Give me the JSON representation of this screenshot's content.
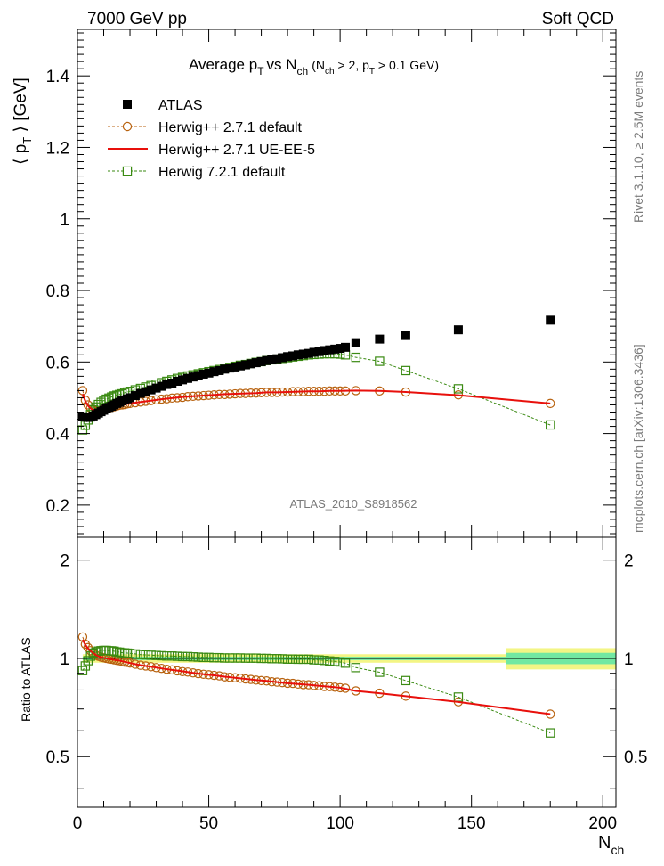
{
  "header": {
    "left": "7000 GeV pp",
    "right": "Soft QCD"
  },
  "side": {
    "top": "Rivet 3.1.10, ≥ 2.5M events",
    "bottom": "mcplots.cern.ch [arXiv:1306.3436]"
  },
  "colors": {
    "atlas": "#000000",
    "herwigpp_default": "#b8620f",
    "herwigpp_ue": "#e8100c",
    "herwig7": "#3a8a12",
    "band_outer": "#f3f585",
    "band_inner": "#72e8a2"
  },
  "chart_data": [
    {
      "type": "scatter",
      "title": "Average p_T vs N_ch (N_ch > 2, p_T > 0.1 GeV)",
      "title_main": "Average p",
      "title_sub_t": "T",
      "title_vs": "vs N",
      "title_sub_ch": "ch",
      "title_cut_open": "(N",
      "title_cut_mid": " > 2, p",
      "title_cut_close": " > 0.1 GeV)",
      "ylabel": "⟨ p_T ⟩ [GeV]",
      "ylabel_open": "⟨ p",
      "ylabel_close": " ⟩ [GeV]",
      "xlabel": "N_ch",
      "watermark": "ATLAS_2010_S8918562",
      "xlim": [
        0,
        205
      ],
      "ylim": [
        0.11,
        1.53
      ],
      "y_ticks": [
        0.2,
        0.4,
        0.6,
        0.8,
        1,
        1.2,
        1.4
      ],
      "y_tick_labels": [
        "0.2",
        "0.4",
        "0.6",
        "0.8",
        "1",
        "1.2",
        "1.4"
      ],
      "legend": [
        "ATLAS",
        "Herwig++ 2.7.1 default",
        "Herwig++ 2.7.1 UE-EE-5",
        "Herwig 7.2.1 default"
      ],
      "legend_position": "top-left",
      "series": [
        {
          "name": "ATLAS",
          "marker": "filled-square",
          "x": [
            2,
            3,
            4,
            5,
            6,
            7,
            8,
            9,
            10,
            11,
            12,
            13,
            14,
            15,
            16,
            17,
            18,
            19,
            20,
            22,
            24,
            26,
            28,
            30,
            32,
            34,
            36,
            38,
            40,
            42,
            44,
            46,
            48,
            50,
            52,
            54,
            56,
            58,
            60,
            62,
            64,
            66,
            68,
            70,
            72,
            74,
            76,
            78,
            80,
            82,
            84,
            86,
            88,
            90,
            92,
            94,
            96,
            98,
            100,
            102,
            106,
            115,
            125,
            145,
            180
          ],
          "y": [
            0.447,
            0.446,
            0.445,
            0.446,
            0.449,
            0.453,
            0.457,
            0.461,
            0.465,
            0.469,
            0.473,
            0.476,
            0.48,
            0.484,
            0.487,
            0.491,
            0.494,
            0.497,
            0.5,
            0.506,
            0.512,
            0.517,
            0.522,
            0.527,
            0.532,
            0.537,
            0.541,
            0.546,
            0.55,
            0.554,
            0.558,
            0.562,
            0.566,
            0.569,
            0.573,
            0.576,
            0.58,
            0.583,
            0.586,
            0.589,
            0.592,
            0.595,
            0.598,
            0.601,
            0.604,
            0.607,
            0.609,
            0.612,
            0.615,
            0.617,
            0.62,
            0.622,
            0.624,
            0.627,
            0.629,
            0.632,
            0.634,
            0.636,
            0.638,
            0.641,
            0.654,
            0.664,
            0.674,
            0.69,
            0.717
          ]
        },
        {
          "name": "Herwig++ 2.7.1 default",
          "marker": "open-circle",
          "line": "dashed",
          "x": [
            2,
            3,
            4,
            5,
            6,
            7,
            8,
            9,
            10,
            11,
            12,
            13,
            14,
            15,
            16,
            17,
            18,
            19,
            20,
            22,
            24,
            26,
            28,
            30,
            32,
            34,
            36,
            38,
            40,
            42,
            44,
            46,
            48,
            50,
            52,
            54,
            56,
            58,
            60,
            62,
            64,
            66,
            68,
            70,
            72,
            74,
            76,
            78,
            80,
            82,
            84,
            86,
            88,
            90,
            92,
            94,
            96,
            98,
            100,
            102,
            106,
            115,
            125,
            145,
            180
          ],
          "y": [
            0.52,
            0.493,
            0.48,
            0.471,
            0.466,
            0.464,
            0.464,
            0.465,
            0.467,
            0.469,
            0.471,
            0.473,
            0.475,
            0.477,
            0.479,
            0.48,
            0.481,
            0.483,
            0.484,
            0.486,
            0.488,
            0.49,
            0.492,
            0.494,
            0.496,
            0.497,
            0.499,
            0.5,
            0.501,
            0.503,
            0.504,
            0.505,
            0.506,
            0.507,
            0.508,
            0.509,
            0.509,
            0.51,
            0.511,
            0.512,
            0.512,
            0.513,
            0.513,
            0.514,
            0.515,
            0.515,
            0.515,
            0.516,
            0.516,
            0.517,
            0.517,
            0.517,
            0.518,
            0.518,
            0.518,
            0.518,
            0.519,
            0.519,
            0.519,
            0.519,
            0.52,
            0.519,
            0.516,
            0.508,
            0.484
          ]
        },
        {
          "name": "Herwig++ 2.7.1 UE-EE-5",
          "marker": "none",
          "line": "solid",
          "x": [
            2,
            3,
            4,
            5,
            6,
            7,
            8,
            9,
            10,
            12,
            14,
            16,
            18,
            20,
            24,
            28,
            32,
            36,
            40,
            44,
            48,
            52,
            56,
            60,
            64,
            68,
            72,
            76,
            80,
            84,
            88,
            92,
            96,
            100,
            106,
            115,
            125,
            145,
            180
          ],
          "y": [
            0.51,
            0.49,
            0.478,
            0.47,
            0.466,
            0.464,
            0.464,
            0.465,
            0.467,
            0.471,
            0.475,
            0.479,
            0.482,
            0.484,
            0.488,
            0.492,
            0.496,
            0.499,
            0.502,
            0.504,
            0.506,
            0.508,
            0.51,
            0.511,
            0.512,
            0.513,
            0.515,
            0.515,
            0.516,
            0.517,
            0.518,
            0.518,
            0.519,
            0.519,
            0.52,
            0.519,
            0.516,
            0.507,
            0.484
          ]
        },
        {
          "name": "Herwig 7.2.1 default",
          "marker": "open-square",
          "line": "dashed",
          "x": [
            2,
            3,
            4,
            5,
            6,
            7,
            8,
            9,
            10,
            11,
            12,
            13,
            14,
            15,
            16,
            17,
            18,
            19,
            20,
            22,
            24,
            26,
            28,
            30,
            32,
            34,
            36,
            38,
            40,
            42,
            44,
            46,
            48,
            50,
            52,
            54,
            56,
            58,
            60,
            62,
            64,
            66,
            68,
            70,
            72,
            74,
            76,
            78,
            80,
            82,
            84,
            86,
            88,
            90,
            92,
            94,
            96,
            98,
            100,
            102,
            106,
            115,
            125,
            145,
            180
          ],
          "y": [
            0.41,
            0.423,
            0.438,
            0.453,
            0.466,
            0.474,
            0.481,
            0.487,
            0.492,
            0.496,
            0.499,
            0.502,
            0.505,
            0.507,
            0.509,
            0.511,
            0.514,
            0.516,
            0.518,
            0.522,
            0.526,
            0.53,
            0.534,
            0.538,
            0.542,
            0.546,
            0.55,
            0.554,
            0.557,
            0.561,
            0.564,
            0.567,
            0.57,
            0.573,
            0.576,
            0.579,
            0.582,
            0.585,
            0.588,
            0.591,
            0.593,
            0.596,
            0.599,
            0.601,
            0.604,
            0.606,
            0.608,
            0.61,
            0.612,
            0.614,
            0.616,
            0.618,
            0.62,
            0.621,
            0.622,
            0.623,
            0.623,
            0.623,
            0.622,
            0.62,
            0.613,
            0.602,
            0.576,
            0.525,
            0.424
          ]
        }
      ]
    },
    {
      "type": "line",
      "ylabel": "Ratio to ATLAS",
      "xlabel": "N_ch",
      "xlabel_main": "N",
      "xlabel_sub": "ch",
      "xlim": [
        0,
        205
      ],
      "ylim": [
        0.35,
        2.35
      ],
      "x_ticks": [
        0,
        50,
        100,
        150,
        200
      ],
      "x_tick_labels": [
        "0",
        "50",
        "100",
        "150",
        "200"
      ],
      "y_ticks": [
        0.5,
        1,
        2
      ],
      "y_tick_labels": [
        "0.5",
        "1",
        "2"
      ],
      "uncertainty_band": {
        "x_from": 2,
        "x_to": 205,
        "inner": 0.012,
        "outer": 0.03,
        "last_bin_from": 163,
        "last_inner": 0.04,
        "last_outer": 0.075
      },
      "series": [
        {
          "name": "Herwig++ 2.7.1 default",
          "marker": "open-circle",
          "line": "dashed",
          "x": [
            2,
            3,
            4,
            5,
            6,
            7,
            8,
            9,
            10,
            11,
            12,
            13,
            14,
            15,
            16,
            17,
            18,
            19,
            20,
            22,
            24,
            26,
            28,
            30,
            32,
            34,
            36,
            38,
            40,
            42,
            44,
            46,
            48,
            50,
            52,
            54,
            56,
            58,
            60,
            62,
            64,
            66,
            68,
            70,
            72,
            74,
            76,
            78,
            80,
            82,
            84,
            86,
            88,
            90,
            92,
            94,
            96,
            98,
            100,
            102,
            106,
            115,
            125,
            145,
            180
          ],
          "y": [
            1.163,
            1.105,
            1.079,
            1.056,
            1.038,
            1.024,
            1.015,
            1.009,
            1.004,
            1.0,
            0.996,
            0.994,
            0.99,
            0.986,
            0.984,
            0.978,
            0.974,
            0.972,
            0.968,
            0.96,
            0.953,
            0.948,
            0.943,
            0.937,
            0.932,
            0.926,
            0.922,
            0.916,
            0.911,
            0.908,
            0.903,
            0.898,
            0.894,
            0.891,
            0.887,
            0.884,
            0.878,
            0.875,
            0.872,
            0.869,
            0.865,
            0.862,
            0.858,
            0.855,
            0.853,
            0.848,
            0.846,
            0.843,
            0.839,
            0.838,
            0.834,
            0.831,
            0.83,
            0.826,
            0.824,
            0.82,
            0.819,
            0.816,
            0.813,
            0.81,
            0.795,
            0.782,
            0.766,
            0.736,
            0.675
          ]
        },
        {
          "name": "Herwig++ 2.7.1 UE-EE-5",
          "marker": "none",
          "line": "solid",
          "x": [
            2,
            3,
            4,
            5,
            6,
            7,
            8,
            9,
            10,
            12,
            14,
            16,
            18,
            20,
            24,
            28,
            32,
            36,
            40,
            44,
            48,
            52,
            56,
            60,
            64,
            68,
            72,
            76,
            80,
            84,
            88,
            92,
            96,
            100,
            106,
            115,
            125,
            145,
            180
          ],
          "y": [
            1.141,
            1.099,
            1.074,
            1.054,
            1.038,
            1.024,
            1.015,
            1.009,
            1.004,
            0.996,
            0.99,
            0.984,
            0.976,
            0.968,
            0.953,
            0.943,
            0.932,
            0.922,
            0.913,
            0.903,
            0.894,
            0.887,
            0.879,
            0.872,
            0.865,
            0.858,
            0.853,
            0.846,
            0.839,
            0.834,
            0.83,
            0.824,
            0.819,
            0.813,
            0.795,
            0.782,
            0.766,
            0.735,
            0.675
          ]
        },
        {
          "name": "Herwig 7.2.1 default",
          "marker": "open-square",
          "line": "dashed",
          "x": [
            2,
            3,
            4,
            5,
            6,
            7,
            8,
            9,
            10,
            11,
            12,
            13,
            14,
            15,
            16,
            17,
            18,
            19,
            20,
            22,
            24,
            26,
            28,
            30,
            32,
            34,
            36,
            38,
            40,
            42,
            44,
            46,
            48,
            50,
            52,
            54,
            56,
            58,
            60,
            62,
            64,
            66,
            68,
            70,
            72,
            74,
            76,
            78,
            80,
            82,
            84,
            86,
            88,
            90,
            92,
            94,
            96,
            98,
            100,
            102,
            106,
            115,
            125,
            145,
            180
          ],
          "y": [
            0.917,
            0.948,
            0.984,
            1.016,
            1.038,
            1.046,
            1.053,
            1.056,
            1.058,
            1.058,
            1.055,
            1.055,
            1.052,
            1.047,
            1.045,
            1.041,
            1.04,
            1.038,
            1.036,
            1.032,
            1.027,
            1.025,
            1.023,
            1.021,
            1.019,
            1.017,
            1.017,
            1.015,
            1.013,
            1.013,
            1.011,
            1.009,
            1.007,
            1.007,
            1.005,
            1.005,
            1.003,
            1.003,
            1.003,
            1.003,
            1.002,
            1.002,
            1.002,
            1.0,
            1.0,
            0.998,
            0.998,
            0.997,
            0.995,
            0.995,
            0.994,
            0.994,
            0.994,
            0.99,
            0.989,
            0.986,
            0.982,
            0.979,
            0.975,
            0.967,
            0.937,
            0.907,
            0.855,
            0.761,
            0.591
          ]
        }
      ]
    }
  ]
}
